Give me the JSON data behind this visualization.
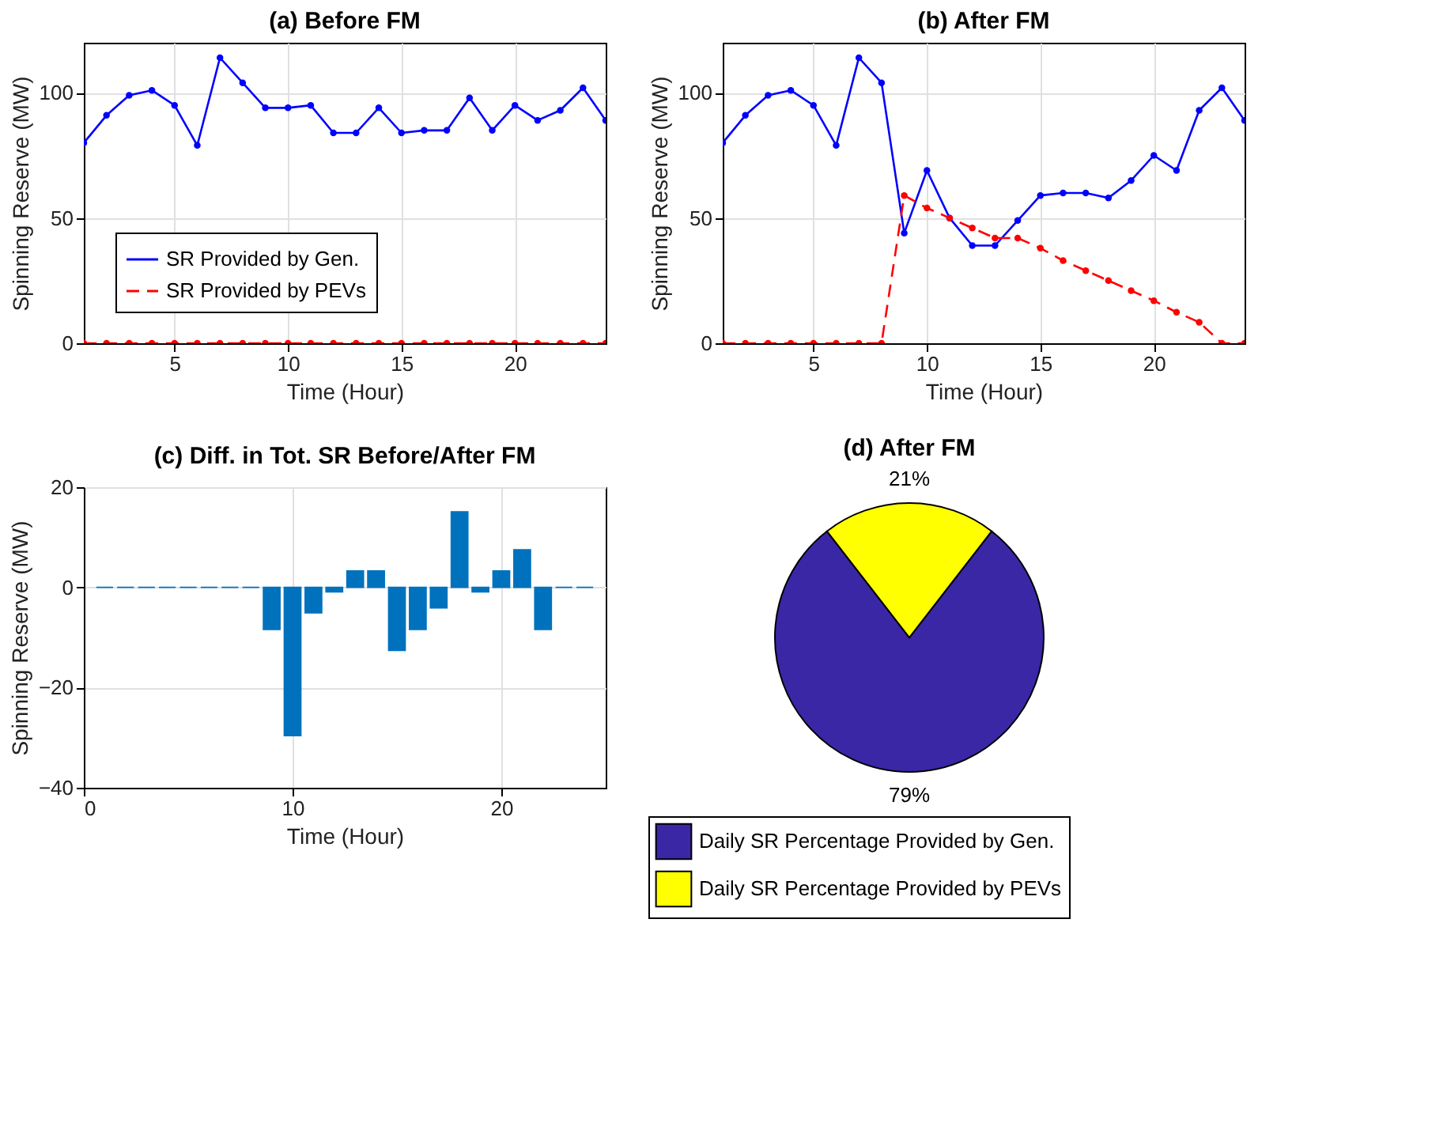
{
  "chart_data": [
    {
      "type": "line",
      "title": "(a) Before FM",
      "xlabel": "Time (Hour)",
      "ylabel": "Spinning Reserve (MW)",
      "x": [
        1,
        2,
        3,
        4,
        5,
        6,
        7,
        8,
        9,
        10,
        11,
        12,
        13,
        14,
        15,
        16,
        17,
        18,
        19,
        20,
        21,
        22,
        23,
        24
      ],
      "series": [
        {
          "name": "SR Provided by Gen.",
          "color": "#0000ff",
          "line_style": "solid",
          "values": [
            80,
            91,
            99,
            101,
            95,
            79,
            114,
            104,
            94,
            94,
            95,
            84,
            84,
            94,
            84,
            85,
            85,
            98,
            85,
            95,
            89,
            93,
            102,
            89
          ]
        },
        {
          "name": "SR Provided by PEVs",
          "color": "#ff0000",
          "line_style": "dashed",
          "values": [
            0,
            0,
            0,
            0,
            0,
            0,
            0,
            0,
            0,
            0,
            0,
            0,
            0,
            0,
            0,
            0,
            0,
            0,
            0,
            0,
            0,
            0,
            0,
            0
          ]
        }
      ],
      "marker": "circle",
      "xlim": [
        1,
        24
      ],
      "xticks": [
        5,
        10,
        15,
        20
      ],
      "ylim": [
        0,
        120
      ],
      "yticks": [
        0,
        50,
        100
      ],
      "grid": true,
      "legend": "bottom left"
    },
    {
      "type": "line",
      "title": "(b) After FM",
      "xlabel": "Time (Hour)",
      "ylabel": "Spinning Reserve (MW)",
      "x": [
        1,
        2,
        3,
        4,
        5,
        6,
        7,
        8,
        9,
        10,
        11,
        12,
        13,
        14,
        15,
        16,
        17,
        18,
        19,
        20,
        21,
        22,
        23,
        24
      ],
      "series": [
        {
          "color": "#0000ff",
          "line_style": "solid",
          "values": [
            80,
            91,
            99,
            101,
            95,
            79,
            114,
            104,
            44,
            69,
            50,
            39,
            39,
            49,
            59,
            60,
            60,
            58,
            65,
            75,
            69,
            93,
            102,
            89
          ]
        },
        {
          "color": "#ff0000",
          "line_style": "dashed",
          "values": [
            0,
            0,
            0,
            0,
            0,
            0,
            0,
            0,
            59,
            54,
            50,
            46,
            42,
            42,
            38,
            33,
            29,
            25,
            21,
            17,
            12.4,
            8.4,
            0,
            0
          ]
        }
      ],
      "marker": "circle",
      "xlim": [
        1,
        24
      ],
      "xticks": [
        5,
        10,
        15,
        20
      ],
      "ylim": [
        0,
        120
      ],
      "yticks": [
        0,
        50,
        100
      ],
      "grid": true
    },
    {
      "type": "bar",
      "title": "(c) Diff. in Tot. SR Before/After FM",
      "xlabel": "Time (Hour)",
      "ylabel": "Spinning Reserve (MW)",
      "x": [
        1,
        2,
        3,
        4,
        5,
        6,
        7,
        8,
        9,
        10,
        11,
        12,
        13,
        14,
        15,
        16,
        17,
        18,
        19,
        20,
        21,
        22,
        23,
        24
      ],
      "values": [
        0,
        0,
        0,
        0,
        0,
        0,
        0,
        0,
        -8.4,
        -29.6,
        -5.1,
        -0.9,
        3.3,
        3.3,
        -12.6,
        -8.4,
        -4.1,
        15.1,
        -0.9,
        3.3,
        7.5,
        -8.4,
        0,
        0
      ],
      "color": "#0072bd",
      "xlim": [
        0,
        25
      ],
      "xticks": [
        0,
        10,
        20
      ],
      "ylim": [
        -40,
        20
      ],
      "yticks": [
        -40,
        -20,
        0,
        20
      ],
      "grid": true
    },
    {
      "type": "pie",
      "title": "(d) After FM",
      "categories": [
        "Daily SR Percentage Provided by Gen.",
        "Daily SR Percentage Provided by PEVs"
      ],
      "values": [
        79,
        21
      ],
      "colors": [
        "#3a27a6",
        "#ffff00"
      ],
      "value_labels": [
        "79%",
        "21%"
      ],
      "legend": "bottom"
    }
  ]
}
